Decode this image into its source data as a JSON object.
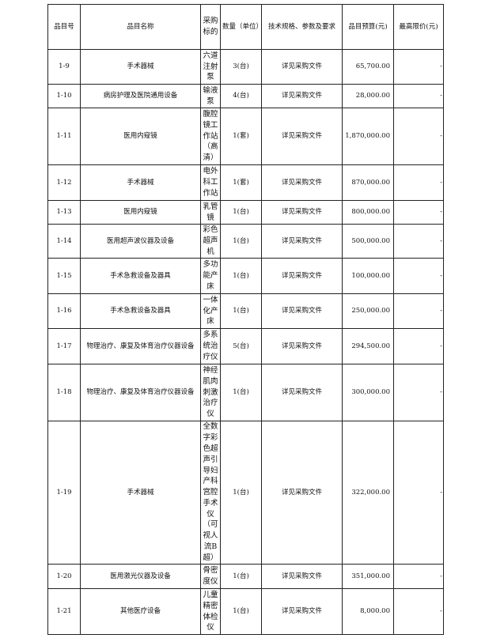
{
  "headers": [
    "品目号",
    "品目名称",
    "采购标的",
    "数量（单位）",
    "技术规格、参数及要求",
    "品目预算(元)",
    "最高限价(元)"
  ],
  "rows": [
    {
      "id": "1-9",
      "name": "手术器械",
      "target": "六道注射泵",
      "qty": "3(台)",
      "spec": "详见采购文件",
      "budget": "65,700.00",
      "limit": "-"
    },
    {
      "id": "1-10",
      "name": "病房护理及医院通用设备",
      "target": "输液泵",
      "qty": "4(台)",
      "spec": "详见采购文件",
      "budget": "28,000.00",
      "limit": "-"
    },
    {
      "id": "1-11",
      "name": "医用内窥镜",
      "target": "腹腔镜工作站（高清）",
      "qty": "1(套)",
      "spec": "详见采购文件",
      "budget": "1,870,000.00",
      "limit": "-"
    },
    {
      "id": "1-12",
      "name": "手术器械",
      "target": "电外科工作站",
      "qty": "1(套)",
      "spec": "详见采购文件",
      "budget": "870,000.00",
      "limit": "-"
    },
    {
      "id": "1-13",
      "name": "医用内窥镜",
      "target": "乳管镜",
      "qty": "1(台)",
      "spec": "详见采购文件",
      "budget": "800,000.00",
      "limit": "-"
    },
    {
      "id": "1-14",
      "name": "医用超声波仪器及设备",
      "target": "彩色超声机",
      "qty": "1(台)",
      "spec": "详见采购文件",
      "budget": "500,000.00",
      "limit": "-"
    },
    {
      "id": "1-15",
      "name": "手术急救设备及器具",
      "target": "多功能产床",
      "qty": "1(台)",
      "spec": "详见采购文件",
      "budget": "100,000.00",
      "limit": "-"
    },
    {
      "id": "1-16",
      "name": "手术急救设备及器具",
      "target": "一体化产床",
      "qty": "1(台)",
      "spec": "详见采购文件",
      "budget": "250,000.00",
      "limit": "-"
    },
    {
      "id": "1-17",
      "name": "物理治疗、康复及体育治疗仪器设备",
      "target": "多系统治疗仪",
      "qty": "5(台)",
      "spec": "详见采购文件",
      "budget": "294,500.00",
      "limit": "-"
    },
    {
      "id": "1-18",
      "name": "物理治疗、康复及体育治疗仪器设备",
      "target": "神经肌肉刺激治疗仪",
      "qty": "1(台)",
      "spec": "详见采购文件",
      "budget": "300,000.00",
      "limit": "-"
    },
    {
      "id": "1-19",
      "name": "手术器械",
      "target": "全数字彩色超声引导妇产科宫腔手术仪（可视人流B超）",
      "qty": "1(台)",
      "spec": "详见采购文件",
      "budget": "322,000.00",
      "limit": "-"
    },
    {
      "id": "1-20",
      "name": "医用激光仪器及设备",
      "target": "骨密度仪",
      "qty": "1(台)",
      "spec": "详见采购文件",
      "budget": "351,000.00",
      "limit": "-"
    },
    {
      "id": "1-21",
      "name": "其他医疗设备",
      "target": "儿童精密体检仪",
      "qty": "1(台)",
      "spec": "详见采购文件",
      "budget": "8,000.00",
      "limit": "-"
    }
  ]
}
